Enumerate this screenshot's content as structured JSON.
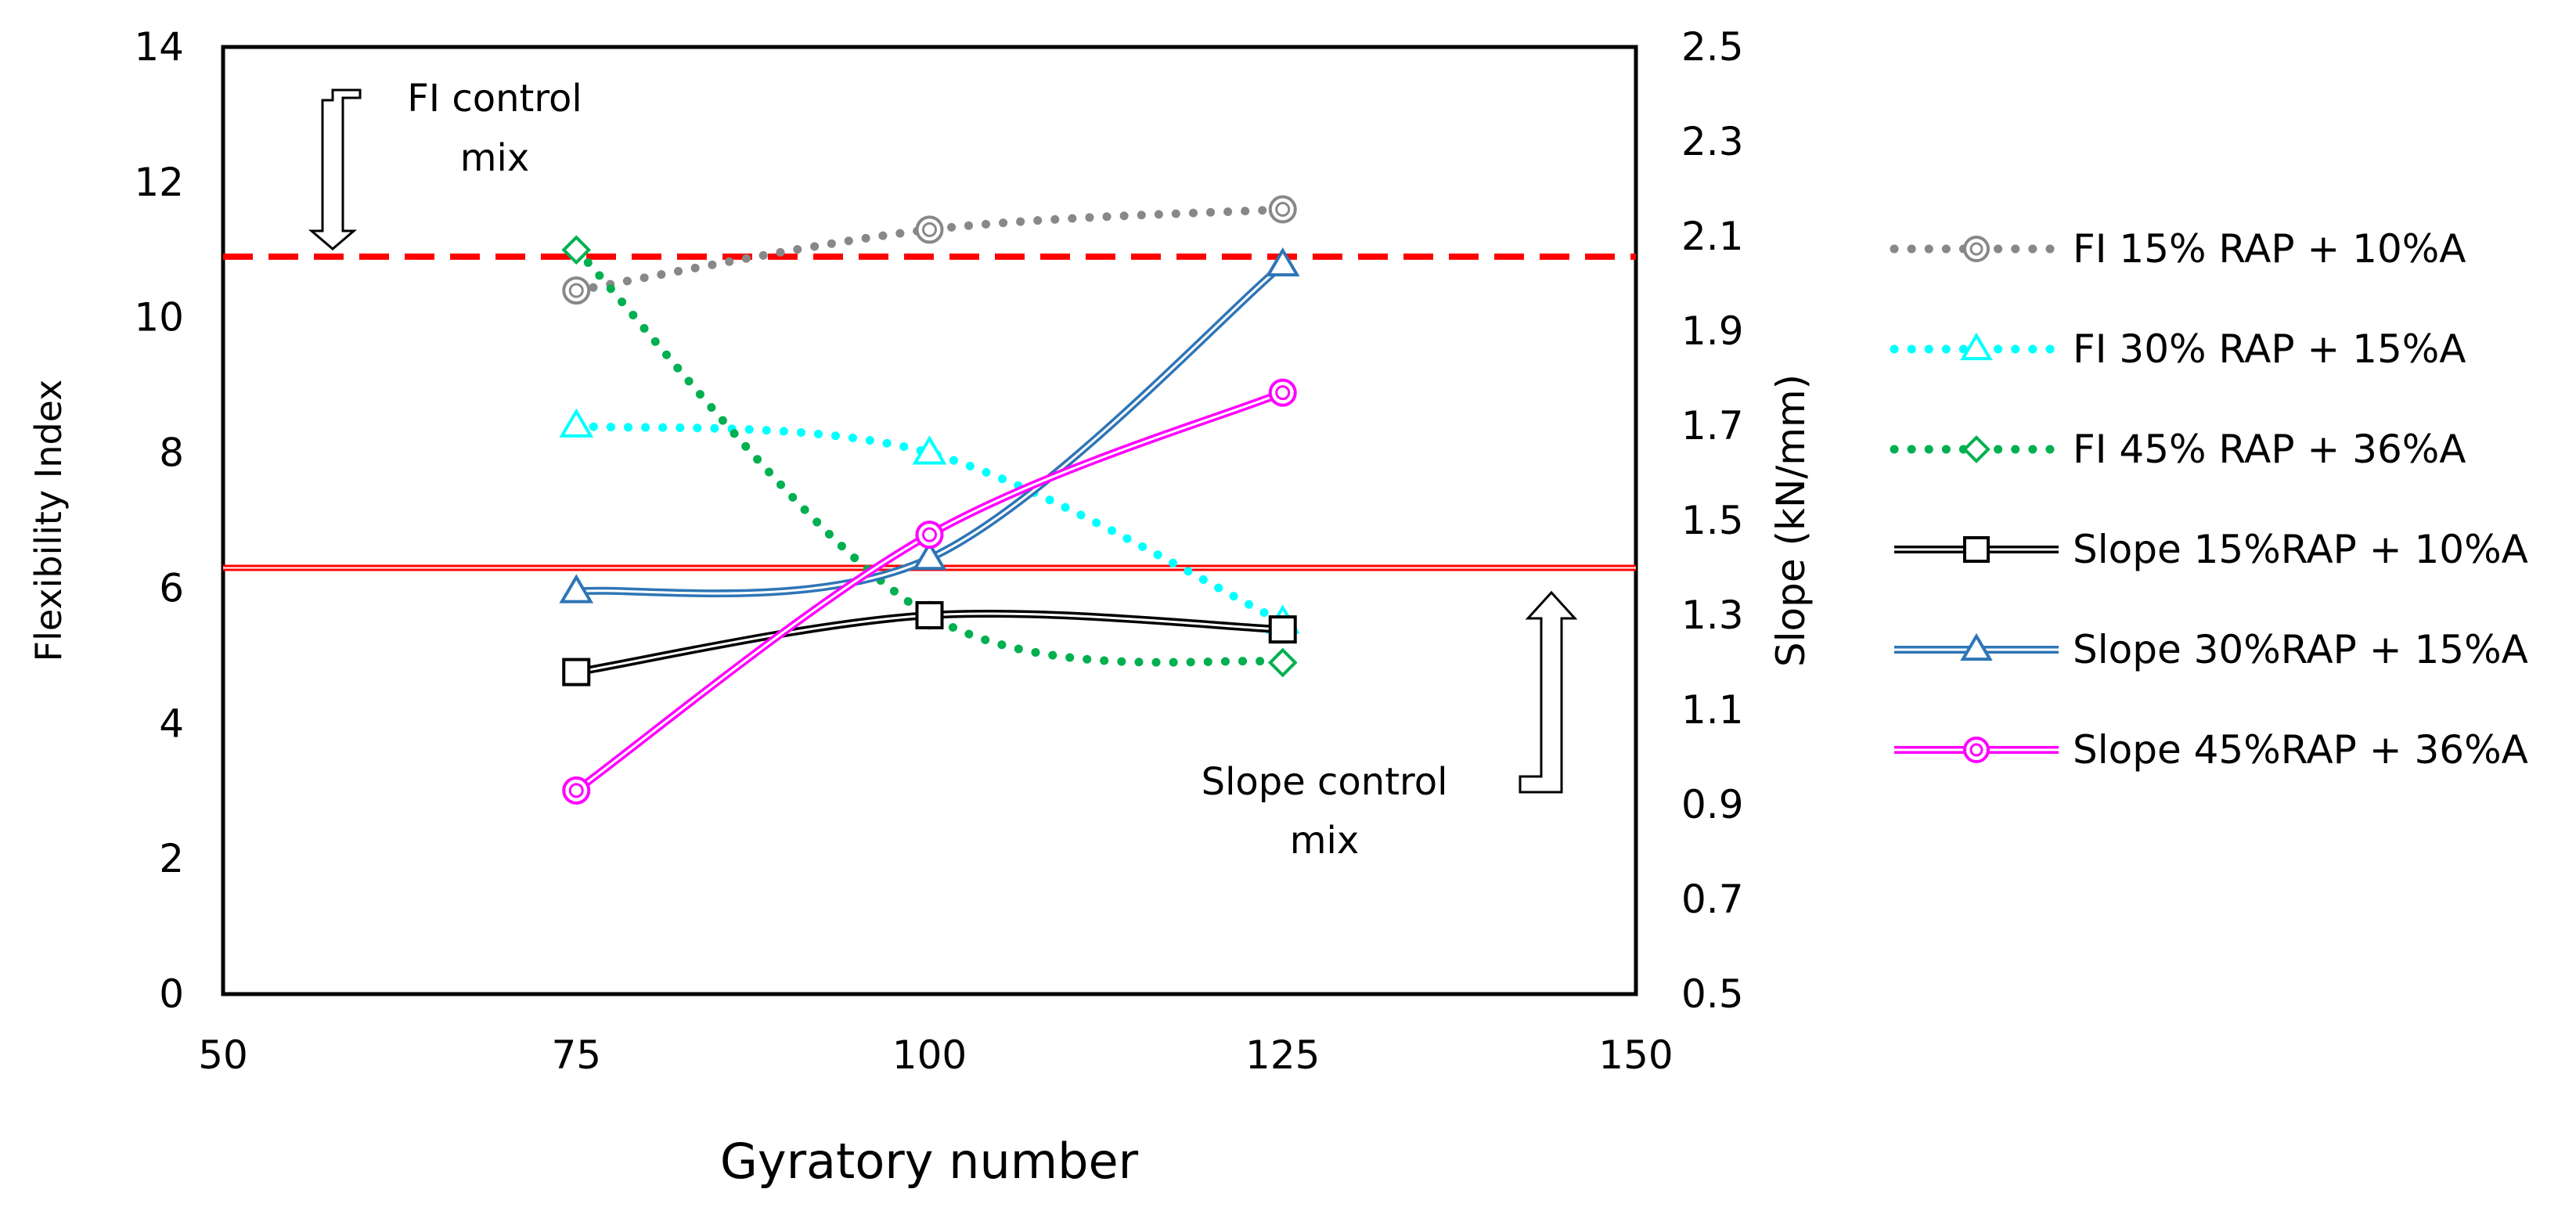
{
  "chart_data": {
    "type": "line",
    "xlabel": "Gyratory number",
    "ylabel_left": "Flexibility Index",
    "ylabel_right": "Slope (kN/mm)",
    "x_axis": {
      "min": 50,
      "max": 150,
      "ticks": [
        50,
        75,
        100,
        125,
        150
      ]
    },
    "y_left": {
      "min": 0,
      "max": 14,
      "ticks": [
        0,
        2,
        4,
        6,
        8,
        10,
        12,
        14
      ]
    },
    "y_right": {
      "min": 0.5,
      "max": 2.5,
      "ticks": [
        "0.5",
        "0.7",
        "0.9",
        "1.1",
        "1.3",
        "1.5",
        "1.7",
        "1.9",
        "2.1",
        "2.3",
        "2.5"
      ]
    },
    "x": [
      75,
      100,
      125
    ],
    "series": [
      {
        "name": "FI 15% RAP + 10%A",
        "axis": "left",
        "style": "dotted",
        "marker": "circle",
        "color": "#888888",
        "values": [
          10.4,
          11.3,
          11.6
        ]
      },
      {
        "name": "FI 30% RAP + 15%A",
        "axis": "left",
        "style": "dotted",
        "marker": "triangle",
        "color": "#00ffff",
        "values": [
          8.4,
          8.0,
          5.5
        ]
      },
      {
        "name": "FI 45% RAP + 36%A",
        "axis": "left",
        "style": "dotted",
        "marker": "diamond",
        "color": "#00b050",
        "values": [
          11.0,
          5.6,
          4.9
        ]
      },
      {
        "name": "Slope 15%RAP + 10%A",
        "axis": "right",
        "style": "double",
        "marker": "square",
        "color": "#000000",
        "values": [
          1.18,
          1.3,
          1.27
        ]
      },
      {
        "name": "Slope 30%RAP + 15%A",
        "axis": "right",
        "style": "double",
        "marker": "triangle",
        "color": "#2e75b6",
        "values": [
          1.35,
          1.42,
          2.04
        ]
      },
      {
        "name": "Slope 45%RAP + 36%A",
        "axis": "right",
        "style": "double",
        "marker": "circle",
        "color": "#ff00ff",
        "values": [
          0.93,
          1.47,
          1.77
        ]
      }
    ],
    "reference_lines": [
      {
        "axis": "left",
        "value": 10.9,
        "color": "#ff0000",
        "style": "dashed"
      },
      {
        "axis": "left",
        "value": 6.3,
        "color": "#ff0000",
        "style": "double"
      }
    ],
    "annotations": [
      {
        "lines": [
          "FI control",
          "mix"
        ]
      },
      {
        "lines": [
          "Slope control",
          "mix"
        ]
      }
    ],
    "legend_position": "right"
  }
}
